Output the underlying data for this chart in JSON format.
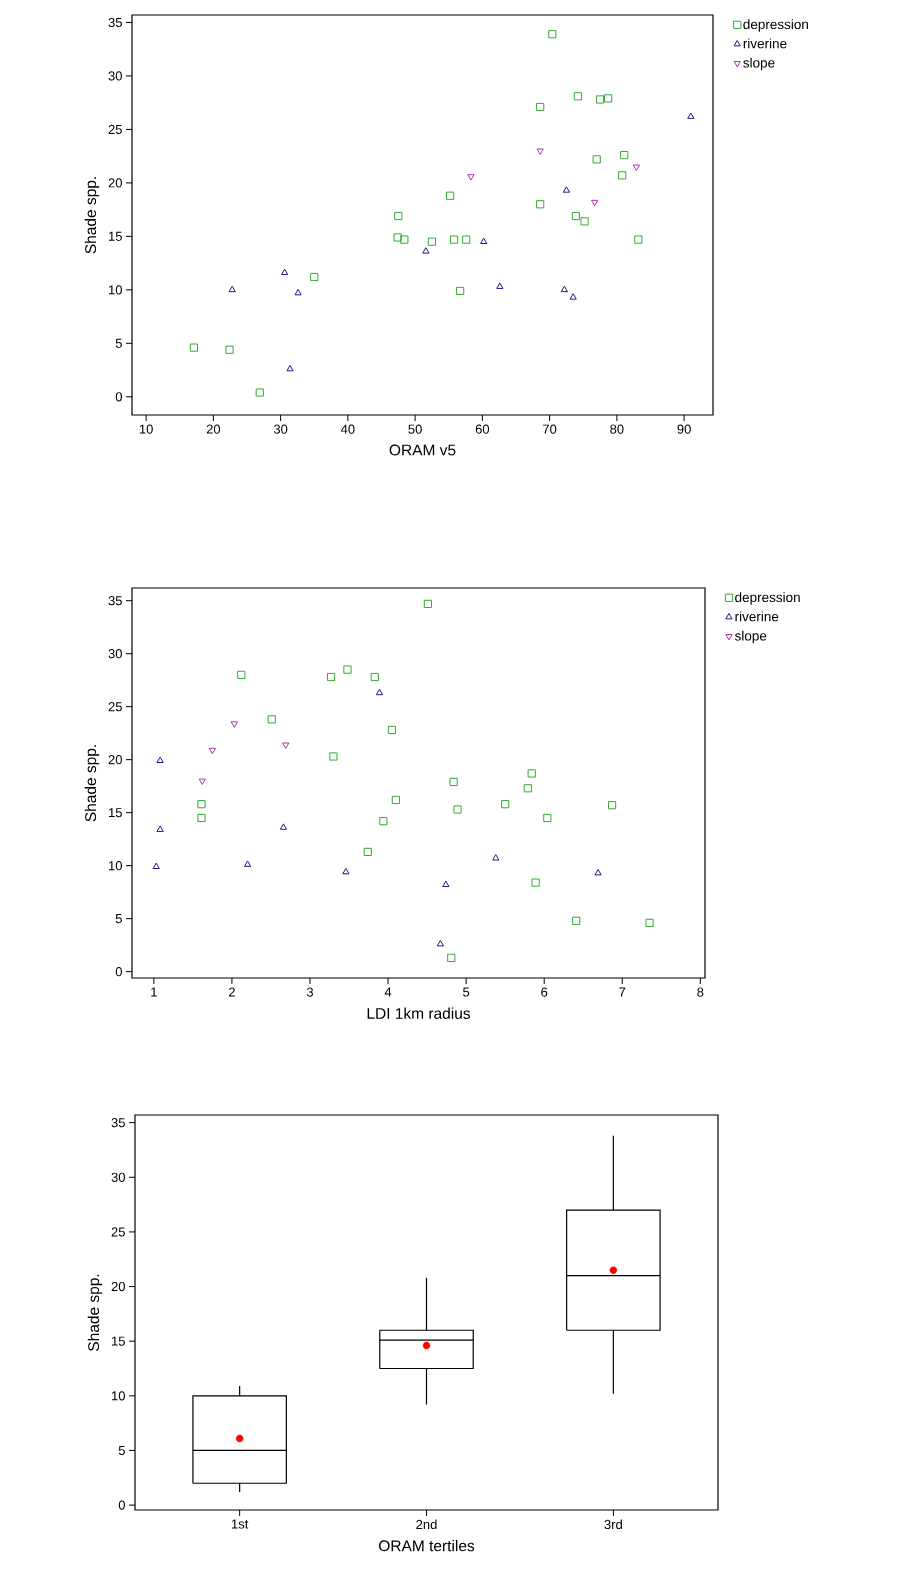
{
  "chart_data": [
    {
      "type": "scatter",
      "xlabel": "ORAM v5",
      "ylabel": "Shade spp.",
      "xlim": [
        7.9,
        94.3
      ],
      "ylim": [
        -1.7,
        35.7
      ],
      "xticks": [
        10,
        20,
        30,
        40,
        50,
        60,
        70,
        80,
        90
      ],
      "yticks": [
        0,
        5,
        10,
        15,
        20,
        25,
        30,
        35
      ],
      "legend": "top right",
      "grid": false,
      "series": [
        {
          "name": "depression",
          "color": "#33aa33",
          "marker": "square",
          "x": [
            17.1,
            22.4,
            26.9,
            35.0,
            47.5,
            47.4,
            48.4,
            52.5,
            55.2,
            55.8,
            57.6,
            56.7,
            70.4,
            68.6,
            68.6,
            74.2,
            77.5,
            78.7,
            77.0,
            81.1,
            80.8,
            73.9,
            75.2,
            83.2
          ],
          "values": [
            4.6,
            4.4,
            0.4,
            11.2,
            16.9,
            14.9,
            14.7,
            14.5,
            18.8,
            14.7,
            14.7,
            9.9,
            33.9,
            27.1,
            18.0,
            28.1,
            27.8,
            27.9,
            22.2,
            22.6,
            20.7,
            16.9,
            16.4,
            14.7
          ]
        },
        {
          "name": "riverine",
          "color": "#1a1a8c",
          "marker": "triangle",
          "x": [
            22.8,
            30.6,
            32.6,
            31.4,
            51.6,
            60.2,
            62.6,
            72.5,
            72.2,
            73.5,
            91.0
          ],
          "values": [
            10.0,
            11.6,
            9.7,
            2.6,
            13.6,
            14.5,
            10.3,
            19.3,
            10.0,
            9.3,
            26.2
          ]
        },
        {
          "name": "slope",
          "color": "#aa33aa",
          "marker": "triangle down",
          "x": [
            58.3,
            68.6,
            76.7,
            82.9
          ],
          "values": [
            20.6,
            23.0,
            18.2,
            21.5
          ]
        }
      ]
    },
    {
      "type": "scatter",
      "xlabel": "LDI 1km radius",
      "ylabel": "Shade spp.",
      "xlim": [
        0.72,
        8.06
      ],
      "ylim": [
        -0.6,
        36.2
      ],
      "xticks": [
        1,
        2,
        3,
        4,
        5,
        6,
        7,
        8
      ],
      "yticks": [
        0,
        5,
        10,
        15,
        20,
        25,
        30,
        35
      ],
      "legend": "top right",
      "grid": false,
      "series": [
        {
          "name": "depression",
          "color": "#33aa33",
          "marker": "square",
          "x": [
            4.51,
            2.12,
            3.27,
            3.48,
            3.83,
            2.51,
            4.05,
            3.3,
            1.61,
            1.61,
            4.84,
            4.1,
            4.89,
            3.94,
            3.74,
            5.5,
            5.84,
            5.79,
            6.04,
            6.87,
            5.89,
            6.41,
            7.35,
            4.81
          ],
          "values": [
            34.7,
            28.0,
            27.8,
            28.5,
            27.8,
            23.8,
            22.8,
            20.3,
            15.8,
            14.5,
            17.9,
            16.2,
            15.3,
            14.2,
            11.3,
            15.8,
            18.7,
            17.3,
            14.5,
            15.7,
            8.4,
            4.8,
            4.6,
            1.3
          ]
        },
        {
          "name": "riverine",
          "color": "#1a1a8c",
          "marker": "triangle",
          "x": [
            1.08,
            1.08,
            1.03,
            2.2,
            2.66,
            3.46,
            3.89,
            4.74,
            4.67,
            5.38,
            6.69
          ],
          "values": [
            19.9,
            13.4,
            9.9,
            10.1,
            13.6,
            9.4,
            26.3,
            8.2,
            2.6,
            10.7,
            9.3
          ]
        },
        {
          "name": "slope",
          "color": "#aa33aa",
          "marker": "triangle down",
          "x": [
            2.03,
            1.75,
            1.62,
            2.69
          ],
          "values": [
            23.4,
            20.9,
            18.0,
            21.4
          ]
        }
      ]
    },
    {
      "type": "box",
      "xlabel": "ORAM tertiles",
      "ylabel": "Shade spp.",
      "categories": [
        "1st",
        "2nd",
        "3rd"
      ],
      "ylim": [
        -0.45,
        35.7
      ],
      "yticks": [
        0,
        5,
        10,
        15,
        20,
        25,
        30,
        35
      ],
      "grid": false,
      "boxes": [
        {
          "low": 1.2,
          "q1": 2.0,
          "median": 5.0,
          "q3": 10.0,
          "high": 10.9,
          "mean": 6.1
        },
        {
          "low": 9.2,
          "q1": 12.5,
          "median": 15.1,
          "q3": 16.0,
          "high": 20.8,
          "mean": 14.6
        },
        {
          "low": 10.2,
          "q1": 16.0,
          "median": 21.0,
          "q3": 27.0,
          "high": 33.8,
          "mean": 21.5
        }
      ]
    }
  ]
}
